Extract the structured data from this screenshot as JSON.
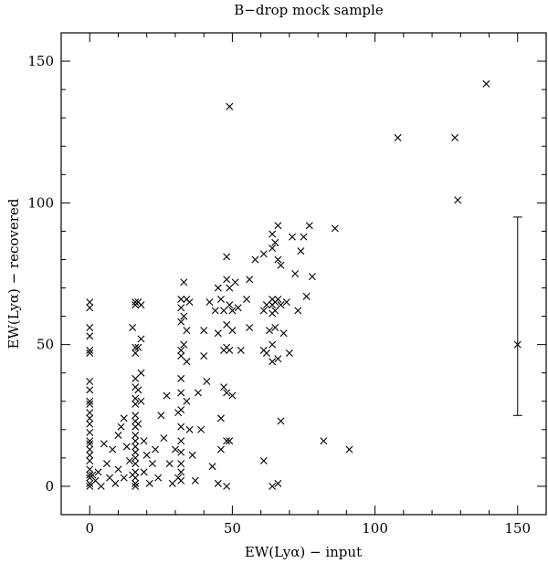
{
  "chart_data": {
    "type": "scatter",
    "title": "B−drop mock sample",
    "xlabel": "EW(Lyα) − input",
    "ylabel": "EW(Lyα) − recovered",
    "xlim": [
      -10,
      160
    ],
    "ylim": [
      -10,
      160
    ],
    "xticks": [
      0,
      50,
      100,
      150
    ],
    "yticks": [
      0,
      50,
      100,
      150
    ],
    "xtick_labels": [
      "0",
      "50",
      "100",
      "150"
    ],
    "ytick_labels": [
      "0",
      "50",
      "100",
      "150"
    ],
    "marker": "x",
    "grid": false,
    "error_bar": {
      "x": 150,
      "y": 50,
      "low": 25,
      "high": 95
    },
    "points": [
      [
        49,
        134
      ],
      [
        108,
        123
      ],
      [
        128,
        123
      ],
      [
        139,
        142
      ],
      [
        129,
        101
      ],
      [
        0,
        65
      ],
      [
        0,
        63
      ],
      [
        0,
        56
      ],
      [
        0,
        53
      ],
      [
        0,
        48
      ],
      [
        0,
        47
      ],
      [
        0,
        37
      ],
      [
        0,
        34
      ],
      [
        0,
        30
      ],
      [
        0,
        29
      ],
      [
        0,
        26
      ],
      [
        0,
        24
      ],
      [
        0,
        22
      ],
      [
        0,
        19
      ],
      [
        0,
        16
      ],
      [
        0,
        15
      ],
      [
        0,
        13
      ],
      [
        0,
        11
      ],
      [
        0,
        9
      ],
      [
        0,
        6
      ],
      [
        0,
        4
      ],
      [
        0,
        3
      ],
      [
        0,
        1
      ],
      [
        0,
        0
      ],
      [
        1,
        4
      ],
      [
        2,
        2
      ],
      [
        3,
        5
      ],
      [
        4,
        0
      ],
      [
        5,
        15
      ],
      [
        6,
        8
      ],
      [
        7,
        3
      ],
      [
        8,
        13
      ],
      [
        9,
        1
      ],
      [
        10,
        6
      ],
      [
        10,
        18
      ],
      [
        11,
        21
      ],
      [
        12,
        3
      ],
      [
        12,
        24
      ],
      [
        13,
        14
      ],
      [
        14,
        9
      ],
      [
        15,
        4
      ],
      [
        15,
        56
      ],
      [
        16,
        65
      ],
      [
        16,
        64
      ],
      [
        16,
        49
      ],
      [
        16,
        47
      ],
      [
        16,
        38
      ],
      [
        16,
        35
      ],
      [
        16,
        31
      ],
      [
        16,
        29
      ],
      [
        16,
        25
      ],
      [
        16,
        23
      ],
      [
        16,
        21
      ],
      [
        16,
        18
      ],
      [
        16,
        16
      ],
      [
        16,
        14
      ],
      [
        16,
        12
      ],
      [
        16,
        10
      ],
      [
        16,
        8
      ],
      [
        16,
        5
      ],
      [
        16,
        3
      ],
      [
        16,
        1
      ],
      [
        16,
        0
      ],
      [
        17,
        65
      ],
      [
        17,
        49
      ],
      [
        17,
        34
      ],
      [
        17,
        22
      ],
      [
        18,
        64
      ],
      [
        18,
        52
      ],
      [
        18,
        40
      ],
      [
        18,
        30
      ],
      [
        19,
        5
      ],
      [
        19,
        16
      ],
      [
        20,
        11
      ],
      [
        21,
        1
      ],
      [
        22,
        8
      ],
      [
        23,
        13
      ],
      [
        24,
        3
      ],
      [
        25,
        25
      ],
      [
        26,
        17
      ],
      [
        27,
        32
      ],
      [
        28,
        8
      ],
      [
        29,
        1
      ],
      [
        30,
        13
      ],
      [
        31,
        3
      ],
      [
        31,
        26
      ],
      [
        32,
        66
      ],
      [
        32,
        63
      ],
      [
        32,
        58
      ],
      [
        32,
        48
      ],
      [
        32,
        46
      ],
      [
        32,
        38
      ],
      [
        32,
        33
      ],
      [
        32,
        27
      ],
      [
        32,
        21
      ],
      [
        32,
        16
      ],
      [
        32,
        12
      ],
      [
        32,
        8
      ],
      [
        32,
        5
      ],
      [
        32,
        2
      ],
      [
        33,
        72
      ],
      [
        33,
        60
      ],
      [
        33,
        50
      ],
      [
        34,
        66
      ],
      [
        34,
        55
      ],
      [
        34,
        44
      ],
      [
        34,
        30
      ],
      [
        35,
        20
      ],
      [
        35,
        65
      ],
      [
        36,
        11
      ],
      [
        37,
        2
      ],
      [
        38,
        33
      ],
      [
        39,
        20
      ],
      [
        40,
        46
      ],
      [
        40,
        55
      ],
      [
        41,
        37
      ],
      [
        42,
        65
      ],
      [
        43,
        7
      ],
      [
        44,
        62
      ],
      [
        45,
        1
      ],
      [
        45,
        70
      ],
      [
        45,
        54
      ],
      [
        46,
        13
      ],
      [
        46,
        24
      ],
      [
        46,
        66
      ],
      [
        47,
        48
      ],
      [
        47,
        35
      ],
      [
        47,
        62
      ],
      [
        48,
        81
      ],
      [
        48,
        73
      ],
      [
        48,
        57
      ],
      [
        48,
        16
      ],
      [
        48,
        49
      ],
      [
        48,
        33
      ],
      [
        48,
        0
      ],
      [
        49,
        70
      ],
      [
        49,
        64
      ],
      [
        49,
        48
      ],
      [
        49,
        16
      ],
      [
        50,
        62
      ],
      [
        50,
        55
      ],
      [
        50,
        32
      ],
      [
        51,
        72
      ],
      [
        52,
        63
      ],
      [
        53,
        48
      ],
      [
        55,
        66
      ],
      [
        56,
        73
      ],
      [
        56,
        56
      ],
      [
        58,
        80
      ],
      [
        61,
        82
      ],
      [
        61,
        62
      ],
      [
        61,
        48
      ],
      [
        61,
        9
      ],
      [
        62,
        64
      ],
      [
        62,
        47
      ],
      [
        63,
        55
      ],
      [
        64,
        89
      ],
      [
        64,
        84
      ],
      [
        64,
        66
      ],
      [
        64,
        64
      ],
      [
        64,
        61
      ],
      [
        64,
        50
      ],
      [
        64,
        44
      ],
      [
        64,
        0
      ],
      [
        65,
        86
      ],
      [
        65,
        65
      ],
      [
        65,
        62
      ],
      [
        65,
        56
      ],
      [
        66,
        92
      ],
      [
        66,
        80
      ],
      [
        66,
        66
      ],
      [
        66,
        45
      ],
      [
        66,
        1
      ],
      [
        67,
        78
      ],
      [
        67,
        64
      ],
      [
        67,
        23
      ],
      [
        68,
        54
      ],
      [
        69,
        65
      ],
      [
        70,
        47
      ],
      [
        71,
        88
      ],
      [
        72,
        75
      ],
      [
        73,
        62
      ],
      [
        74,
        83
      ],
      [
        75,
        88
      ],
      [
        76,
        67
      ],
      [
        77,
        92
      ],
      [
        78,
        74
      ],
      [
        82,
        16
      ],
      [
        86,
        91
      ],
      [
        91,
        13
      ]
    ]
  }
}
